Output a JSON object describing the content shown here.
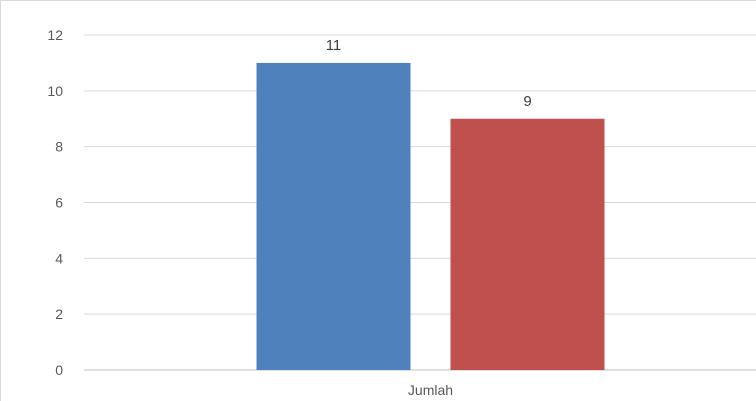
{
  "chart_data": {
    "type": "bar",
    "categories": [
      "Jumlah"
    ],
    "series": [
      {
        "values": [
          11
        ],
        "color": "#4f81bd"
      },
      {
        "values": [
          9
        ],
        "color": "#c0504d"
      }
    ],
    "title": "",
    "xlabel": "",
    "ylabel": "",
    "ylim": [
      0,
      12
    ],
    "yticks": [
      "0",
      "2",
      "4",
      "6",
      "8",
      "10",
      "12"
    ],
    "grid": true,
    "legend": "none",
    "gridline_color": "#d9d9d9",
    "axis_color": "#bfbfbf"
  }
}
